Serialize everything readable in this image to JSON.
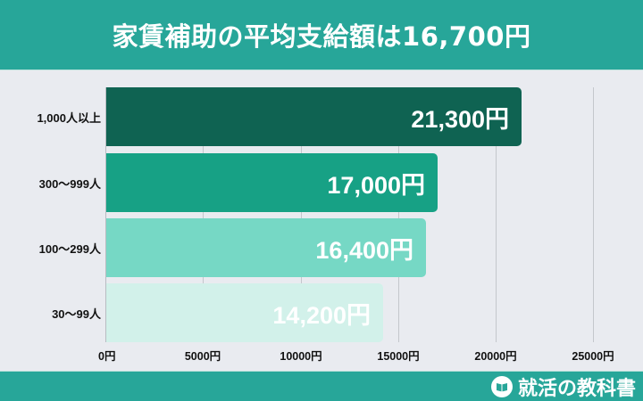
{
  "header": {
    "title": "家賃補助の平均支給額は16,700円"
  },
  "footer": {
    "brand": "就活の教科書",
    "logo_icon": "book-bubble-icon"
  },
  "colors": {
    "header_bg": "#27a699",
    "plot_bg": "#e9ebf0",
    "bar_1": "#0f6352",
    "bar_2": "#17a185",
    "bar_3": "#76d8c5",
    "bar_4": "#d2f1ea"
  },
  "chart_data": {
    "type": "bar",
    "orientation": "horizontal",
    "title": "家賃補助の平均支給額は16,700円",
    "xlabel": "",
    "ylabel": "",
    "categories": [
      "1,000人以上",
      "300〜999人",
      "100〜299人",
      "30〜99人"
    ],
    "values": [
      21300,
      17000,
      16400,
      14200
    ],
    "value_labels": [
      "21,300円",
      "17,000円",
      "16,400円",
      "14,200円"
    ],
    "xlim": [
      0,
      25000
    ],
    "x_ticks": [
      0,
      5000,
      10000,
      15000,
      20000,
      25000
    ],
    "x_tick_labels": [
      "0円",
      "5000円",
      "10000円",
      "15000円",
      "20000円",
      "25000円"
    ],
    "grid": "vertical",
    "legend": "none"
  }
}
